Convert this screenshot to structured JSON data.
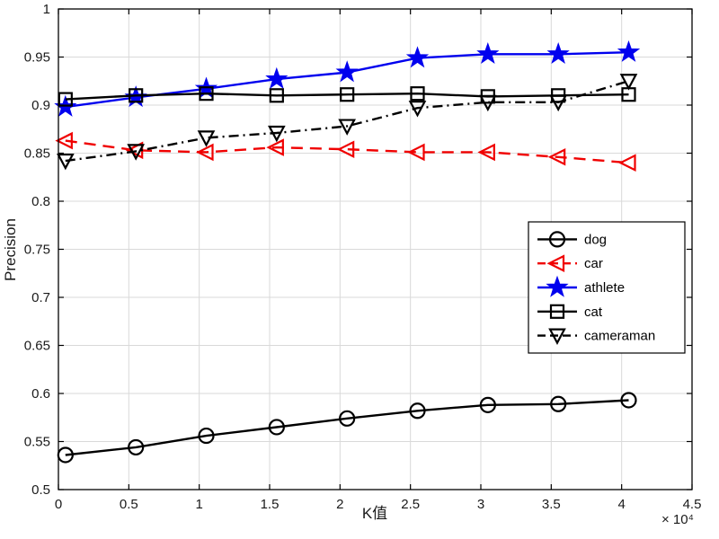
{
  "chart_data": {
    "type": "line",
    "title": "",
    "xlabel": "K值",
    "ylabel": "Precision",
    "x_multiplier": "× 10⁴",
    "xlim": [
      0,
      4.5
    ],
    "ylim": [
      0.5,
      1
    ],
    "x_ticks": [
      0,
      0.5,
      1,
      1.5,
      2,
      2.5,
      3,
      3.5,
      4,
      4.5
    ],
    "y_ticks": [
      0.5,
      0.55,
      0.6,
      0.65,
      0.7,
      0.75,
      0.8,
      0.85,
      0.9,
      0.95,
      1
    ],
    "grid": true,
    "legend_position": "middle-right",
    "x": [
      0.05,
      0.55,
      1.05,
      1.55,
      2.05,
      2.55,
      3.05,
      3.55,
      4.05
    ],
    "series": [
      {
        "name": "dog",
        "color": "#000000",
        "line_style": "solid",
        "marker": "circle",
        "values": [
          0.536,
          0.544,
          0.556,
          0.565,
          0.574,
          0.582,
          0.588,
          0.589,
          0.593
        ]
      },
      {
        "name": "car",
        "color": "#f00000",
        "line_style": "dashed",
        "marker": "triangle-left",
        "values": [
          0.863,
          0.853,
          0.851,
          0.856,
          0.854,
          0.851,
          0.851,
          0.846,
          0.84
        ]
      },
      {
        "name": "athlete",
        "color": "#0000ee",
        "line_style": "solid",
        "marker": "star",
        "values": [
          0.898,
          0.908,
          0.917,
          0.927,
          0.934,
          0.949,
          0.953,
          0.953,
          0.955
        ]
      },
      {
        "name": "cat",
        "color": "#000000",
        "line_style": "solid",
        "marker": "square",
        "values": [
          0.906,
          0.91,
          0.912,
          0.91,
          0.911,
          0.912,
          0.909,
          0.91,
          0.911
        ]
      },
      {
        "name": "cameraman",
        "color": "#000000",
        "line_style": "dashdot",
        "marker": "triangle-down",
        "values": [
          0.842,
          0.852,
          0.866,
          0.871,
          0.878,
          0.897,
          0.903,
          0.903,
          0.925
        ]
      }
    ]
  }
}
